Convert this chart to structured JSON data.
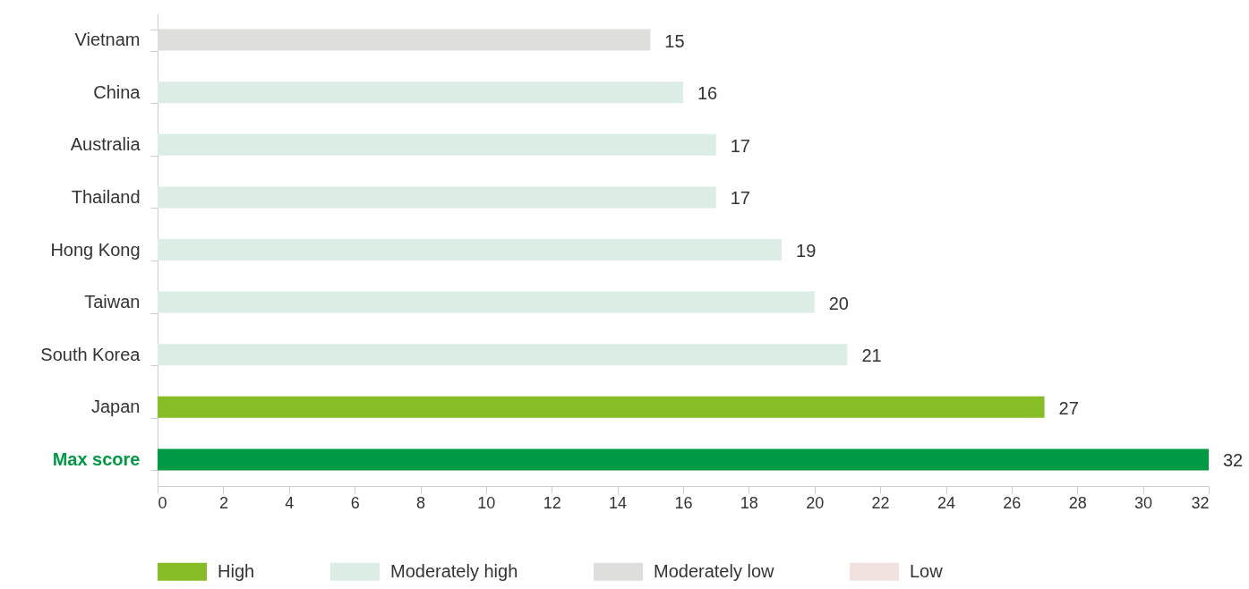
{
  "chart_data": {
    "type": "bar",
    "orientation": "horizontal",
    "categories": [
      "Vietnam",
      "China",
      "Australia",
      "Thailand",
      "Hong Kong",
      "Taiwan",
      "South Korea",
      "Japan",
      "Max score"
    ],
    "series": [
      {
        "name": "High",
        "color": "#86bc25",
        "values": [
          null,
          null,
          null,
          null,
          null,
          null,
          null,
          27,
          null
        ]
      },
      {
        "name": "Moderately high",
        "color": "#dcede6",
        "values": [
          null,
          16,
          17,
          17,
          19,
          20,
          21,
          null,
          null
        ]
      },
      {
        "name": "Moderately low",
        "color": "#dededc",
        "values": [
          15,
          null,
          null,
          null,
          null,
          null,
          null,
          null,
          null
        ]
      },
      {
        "name": "Low",
        "color": "#f2e2df",
        "values": [
          null,
          null,
          null,
          null,
          null,
          null,
          null,
          null,
          null
        ]
      },
      {
        "color": "#009a44",
        "values": [
          null,
          null,
          null,
          null,
          null,
          null,
          null,
          null,
          32
        ]
      }
    ],
    "xlim": [
      0,
      32
    ],
    "xticks": [
      0,
      2,
      4,
      6,
      8,
      10,
      12,
      14,
      16,
      18,
      20,
      22,
      24,
      26,
      28,
      30,
      32
    ],
    "data_labels": true,
    "legend": "bottom",
    "grid": false
  }
}
